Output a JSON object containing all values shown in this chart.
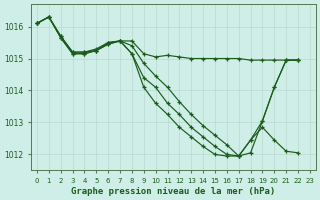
{
  "xlabel": "Graphe pression niveau de la mer (hPa)",
  "xlim": [
    -0.5,
    23.5
  ],
  "ylim": [
    1011.5,
    1016.7
  ],
  "yticks": [
    1012,
    1013,
    1014,
    1015,
    1016
  ],
  "xticks": [
    0,
    1,
    2,
    3,
    4,
    5,
    6,
    7,
    8,
    9,
    10,
    11,
    12,
    13,
    14,
    15,
    16,
    17,
    18,
    19,
    20,
    21,
    22,
    23
  ],
  "background_color": "#d0eee8",
  "grid_color": "#b8d8cc",
  "line_color": "#1a5c1a",
  "series": [
    {
      "x": [
        0,
        1,
        2,
        3,
        4,
        5,
        6,
        7,
        8,
        9,
        10,
        11,
        12,
        13,
        14,
        15,
        16,
        17,
        18,
        19,
        20,
        21,
        22
      ],
      "y": [
        1016.1,
        1016.3,
        1015.7,
        1015.2,
        1015.2,
        1015.25,
        1015.5,
        1015.55,
        1015.55,
        1015.15,
        1015.05,
        1015.1,
        1015.05,
        1015.0,
        1015.0,
        1015.0,
        1015.0,
        1015.0,
        1014.95,
        1014.95,
        1014.95,
        1014.95,
        1014.95
      ],
      "linestyle": "-",
      "marker": true
    },
    {
      "x": [
        0,
        1,
        2,
        3,
        4,
        5,
        6,
        7,
        8,
        9,
        10,
        11,
        12,
        13,
        14,
        15,
        16,
        17,
        18,
        19,
        20,
        21,
        22
      ],
      "y": [
        1016.1,
        1016.3,
        1015.7,
        1015.2,
        1015.2,
        1015.3,
        1015.5,
        1015.55,
        1015.4,
        1014.85,
        1014.45,
        1014.1,
        1013.65,
        1013.25,
        1012.9,
        1012.6,
        1012.3,
        1011.95,
        1012.05,
        1013.05,
        1014.1,
        1014.95,
        1014.95
      ],
      "linestyle": "-",
      "marker": true
    },
    {
      "x": [
        0,
        1,
        2,
        3,
        4,
        5,
        6,
        7,
        8,
        9,
        10,
        11,
        12,
        13,
        14,
        15,
        16,
        17,
        18,
        19,
        20,
        21,
        22
      ],
      "y": [
        1016.1,
        1016.3,
        1015.65,
        1015.15,
        1015.15,
        1015.25,
        1015.45,
        1015.55,
        1015.15,
        1014.4,
        1014.1,
        1013.6,
        1013.25,
        1012.85,
        1012.55,
        1012.25,
        1012.0,
        1011.95,
        1012.45,
        1013.05,
        1014.1,
        1014.95,
        1014.95
      ],
      "linestyle": "-",
      "marker": true
    },
    {
      "x": [
        0,
        1,
        2,
        3,
        4,
        5,
        6,
        7,
        8,
        9,
        10,
        11,
        12,
        13,
        14,
        15,
        16,
        17,
        18,
        19,
        20,
        21,
        22
      ],
      "y": [
        1016.1,
        1016.3,
        1015.65,
        1015.15,
        1015.15,
        1015.25,
        1015.45,
        1015.55,
        1015.15,
        1014.1,
        1013.6,
        1013.25,
        1012.85,
        1012.55,
        1012.25,
        1012.0,
        1011.95,
        1011.95,
        1012.45,
        1012.85,
        1012.45,
        1012.1,
        1012.05
      ],
      "linestyle": "-",
      "marker": true
    }
  ]
}
